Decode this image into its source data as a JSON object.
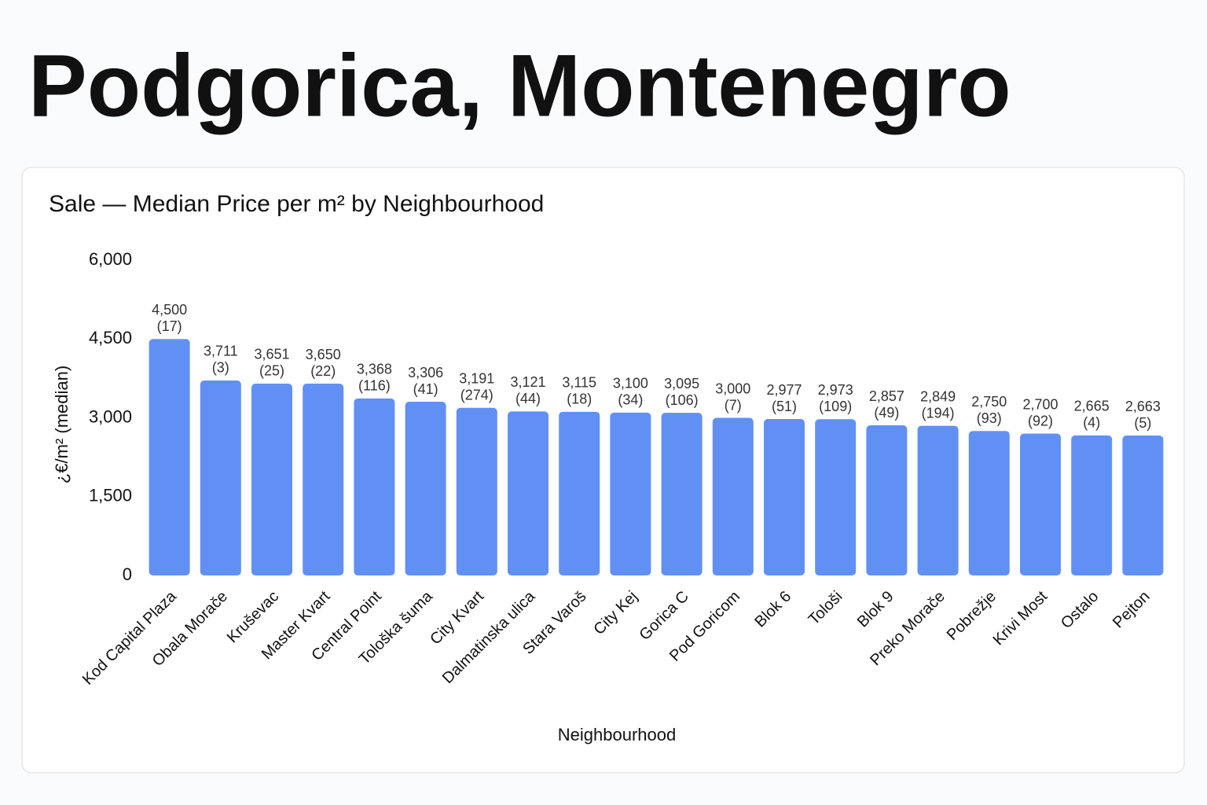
{
  "page_title": "Podgorica, Montenegro",
  "chart_data": {
    "type": "bar",
    "title": "Sale — Median Price per m² by Neighbourhood",
    "x_label": "Neighbourhood",
    "y_label": "¿€/m² (median)",
    "categories": [
      "Kod Capital Plaza",
      "Obala Morače",
      "Kruševac",
      "Master Kvart",
      "Central Point",
      "Tološka šuma",
      "City Kvart",
      "Dalmatinska ulica",
      "Stara Varoš",
      "City Kej",
      "Gorica C",
      "Pod Goricom",
      "Blok 6",
      "Tološi",
      "Blok 9",
      "Preko Morače",
      "Pobrežje",
      "Krivi Most",
      "Ostalo",
      "Pejton"
    ],
    "values": [
      4500,
      3711,
      3651,
      3650,
      3368,
      3306,
      3191,
      3121,
      3115,
      3100,
      3095,
      3000,
      2977,
      2973,
      2857,
      2849,
      2750,
      2700,
      2665,
      2663
    ],
    "value_labels": [
      "4,500",
      "3,711",
      "3,651",
      "3,650",
      "3,368",
      "3,306",
      "3,191",
      "3,121",
      "3,115",
      "3,100",
      "3,095",
      "3,000",
      "2,977",
      "2,973",
      "2,857",
      "2,849",
      "2,750",
      "2,700",
      "2,665",
      "2,663"
    ],
    "count_labels": [
      "(17)",
      "(3)",
      "(25)",
      "(22)",
      "(116)",
      "(41)",
      "(274)",
      "(44)",
      "(18)",
      "(34)",
      "(106)",
      "(7)",
      "(51)",
      "(109)",
      "(49)",
      "(194)",
      "(93)",
      "(92)",
      "(4)",
      "(5)"
    ],
    "color": "#6190f5",
    "ylim": [
      0,
      6000
    ],
    "yticks": [
      0,
      {
        "value": 1500,
        "label": "1,500"
      },
      {
        "value": 3000,
        "label": "3,000"
      },
      {
        "value": 4500,
        "label": "4,500"
      },
      {
        "value": 6000,
        "label": "6,000"
      }
    ],
    "grid": false
  }
}
